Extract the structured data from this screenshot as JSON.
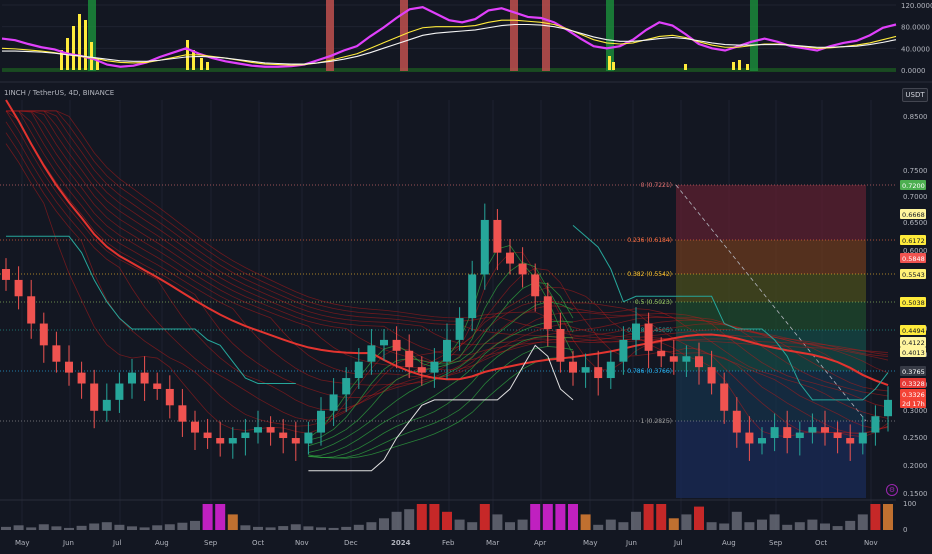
{
  "header": {
    "symbol_title": "1INCH / TetherUS, 4D, BINANCE",
    "currency_button": "USDT"
  },
  "colors": {
    "background": "#131722",
    "up": "#26a69a",
    "down": "#ef5350",
    "oscillator_fast": "#e040fb",
    "oscillator_slow": "#ffeb3b",
    "trail_stop": "#e0e0e0",
    "ma_red": "#e3342f",
    "ribbon_green": "#2e9e3e"
  },
  "icons": {
    "indicator_settings": "gear-icon"
  },
  "chart_data": [
    {
      "type": "line",
      "name": "oscillator_panel",
      "y_ticks": [
        "120.0000",
        "80.0000",
        "40.0000",
        "0.0000"
      ],
      "ylim": [
        0,
        120
      ],
      "series": [
        {
          "name": "",
          "color": "#e040fb",
          "values": [
            58,
            55,
            48,
            42,
            38,
            30,
            26,
            20,
            10,
            6,
            8,
            14,
            24,
            32,
            40,
            30,
            22,
            16,
            12,
            8,
            6,
            6,
            7,
            10,
            18,
            26,
            36,
            44,
            62,
            78,
            96,
            112,
            116,
            104,
            92,
            88,
            94,
            110,
            114,
            106,
            98,
            96,
            88,
            74,
            58,
            44,
            40,
            44,
            56,
            74,
            88,
            82,
            66,
            48,
            40,
            36,
            44,
            52,
            58,
            52,
            44,
            40,
            36,
            44,
            50,
            54,
            64,
            78,
            84
          ]
        },
        {
          "name": "",
          "color": "#ffeb3b",
          "values": [
            40,
            39,
            37,
            35,
            32,
            28,
            25,
            22,
            17,
            14,
            13,
            14,
            18,
            23,
            28,
            28,
            25,
            22,
            18,
            14,
            11,
            10,
            9,
            10,
            13,
            18,
            24,
            30,
            40,
            50,
            60,
            70,
            78,
            80,
            80,
            80,
            82,
            88,
            92,
            92,
            90,
            88,
            84,
            76,
            66,
            56,
            50,
            48,
            50,
            56,
            62,
            64,
            60,
            52,
            46,
            42,
            42,
            45,
            48,
            48,
            46,
            43,
            40,
            41,
            43,
            46,
            50,
            56,
            62
          ]
        },
        {
          "name": "",
          "color": "#f5f5f5",
          "values": [
            35,
            35,
            34,
            33,
            31,
            28,
            26,
            23,
            20,
            17,
            16,
            16,
            18,
            21,
            24,
            25,
            24,
            22,
            19,
            16,
            13,
            12,
            11,
            11,
            13,
            16,
            20,
            25,
            32,
            40,
            48,
            56,
            64,
            68,
            70,
            72,
            74,
            78,
            82,
            84,
            84,
            83,
            80,
            75,
            68,
            61,
            56,
            53,
            53,
            55,
            58,
            60,
            58,
            54,
            50,
            47,
            46,
            46,
            47,
            47,
            46,
            44,
            42,
            42,
            43,
            44,
            47,
            51,
            56
          ]
        }
      ],
      "volume_spikes": [
        "Jun",
        "Dec",
        "Jun",
        "Sep"
      ],
      "vertical_bands": [
        {
          "at": "Jun",
          "color": "green"
        },
        {
          "at": "Nov",
          "color": "red"
        },
        {
          "at": "Jan",
          "color": "red"
        },
        {
          "at": "Mar",
          "color": "red"
        },
        {
          "at": "Apr",
          "color": "red"
        },
        {
          "at": "Jun",
          "color": "green"
        },
        {
          "at": "Sep",
          "color": "green"
        }
      ]
    },
    {
      "type": "candlestick",
      "name": "price_panel",
      "title": "1INCH / TetherUS, 4D, BINANCE",
      "y_ticks": [
        "0.8500",
        "0.7500",
        "0.7000",
        "0.6500",
        "0.6000",
        "0.4500",
        "0.4000",
        "0.3500",
        "0.3000",
        "0.2500",
        "0.2000",
        "0.1500"
      ],
      "ylim": [
        0.15,
        0.88
      ],
      "x_ticks": [
        "May",
        "Jun",
        "Jul",
        "Aug",
        "Sep",
        "Oct",
        "Nov",
        "Dec",
        "2024",
        "Feb",
        "Mar",
        "Apr",
        "May",
        "Jun",
        "Jul",
        "Aug",
        "Sep",
        "Oct",
        "Nov"
      ],
      "price_closes": [
        0.55,
        0.52,
        0.47,
        0.43,
        0.4,
        0.38,
        0.36,
        0.31,
        0.33,
        0.36,
        0.38,
        0.36,
        0.35,
        0.32,
        0.29,
        0.27,
        0.26,
        0.25,
        0.26,
        0.27,
        0.28,
        0.27,
        0.26,
        0.25,
        0.27,
        0.31,
        0.34,
        0.37,
        0.4,
        0.43,
        0.44,
        0.42,
        0.39,
        0.38,
        0.4,
        0.44,
        0.48,
        0.56,
        0.66,
        0.6,
        0.58,
        0.56,
        0.52,
        0.46,
        0.4,
        0.38,
        0.39,
        0.37,
        0.4,
        0.44,
        0.47,
        0.42,
        0.41,
        0.4,
        0.41,
        0.39,
        0.36,
        0.31,
        0.27,
        0.25,
        0.26,
        0.28,
        0.26,
        0.27,
        0.28,
        0.27,
        0.26,
        0.25,
        0.27,
        0.3,
        0.33
      ],
      "price_labels": [
        {
          "text": "0.7200",
          "color": "#4caf50"
        },
        {
          "text": "0.6668",
          "color": "#fff59d"
        },
        {
          "text": "0.6172",
          "color": "#ffeb3b"
        },
        {
          "text": "0.5848",
          "color": "#ef5350"
        },
        {
          "text": "0.5543",
          "color": "#fff176"
        },
        {
          "text": "0.5038",
          "color": "#ffeb3b"
        },
        {
          "text": "0.4494",
          "color": "#ffeb3b"
        },
        {
          "text": "0.4122",
          "color": "#fff59d"
        },
        {
          "text": "0.4013",
          "color": "#fff59d"
        },
        {
          "text": "0.3765",
          "color": "#363a45"
        },
        {
          "text": "0.3328",
          "color": "#e53935"
        },
        {
          "text": "0.3326",
          "color": "#f44336"
        },
        {
          "text": "2d 17h",
          "color": "#f44336"
        }
      ],
      "fibonacci": [
        {
          "label": "0 (0.7221)",
          "value": 0.7221,
          "color": "#e57373"
        },
        {
          "label": "0.236 (0.6184)",
          "value": 0.6184,
          "color": "#ff7043"
        },
        {
          "label": "0.382 (0.5542)",
          "value": 0.5542,
          "color": "#fbc02d"
        },
        {
          "label": "0.5 (0.5023)",
          "value": 0.5023,
          "color": "#9ccc65"
        },
        {
          "label": "0.618 (0.4505)",
          "value": 0.4505,
          "color": "#26a69a"
        },
        {
          "label": "0.786 (0.3766)",
          "value": 0.3766,
          "color": "#29b6f6"
        },
        {
          "label": "1 (0.2825)",
          "value": 0.2825,
          "color": "#9e9e9e"
        }
      ]
    },
    {
      "type": "bar",
      "name": "volume_panel",
      "y_ticks": [
        "100",
        "0"
      ],
      "ylim": [
        0,
        100
      ],
      "values": [
        12,
        18,
        10,
        22,
        14,
        8,
        16,
        25,
        30,
        20,
        14,
        10,
        18,
        22,
        28,
        35,
        100,
        100,
        60,
        18,
        12,
        10,
        15,
        22,
        14,
        10,
        8,
        12,
        20,
        30,
        45,
        70,
        80,
        100,
        100,
        70,
        40,
        30,
        100,
        60,
        30,
        40,
        100,
        100,
        100,
        100,
        60,
        20,
        40,
        30,
        70,
        100,
        100,
        45,
        60,
        90,
        30,
        25,
        70,
        30,
        40,
        60,
        20,
        30,
        40,
        25,
        15,
        35,
        60,
        100,
        100
      ],
      "colors": [
        "g",
        "g",
        "g",
        "g",
        "g",
        "g",
        "g",
        "g",
        "g",
        "g",
        "g",
        "g",
        "g",
        "g",
        "g",
        "g",
        "m",
        "m",
        "o",
        "g",
        "g",
        "g",
        "g",
        "g",
        "g",
        "g",
        "g",
        "g",
        "g",
        "g",
        "g",
        "g",
        "g",
        "r",
        "r",
        "r",
        "g",
        "g",
        "r",
        "g",
        "g",
        "g",
        "m",
        "m",
        "m",
        "m",
        "o",
        "g",
        "g",
        "g",
        "g",
        "r",
        "r",
        "o",
        "g",
        "r",
        "g",
        "g",
        "g",
        "g",
        "g",
        "g",
        "g",
        "g",
        "g",
        "g",
        "g",
        "g",
        "g",
        "r",
        "o"
      ]
    }
  ]
}
